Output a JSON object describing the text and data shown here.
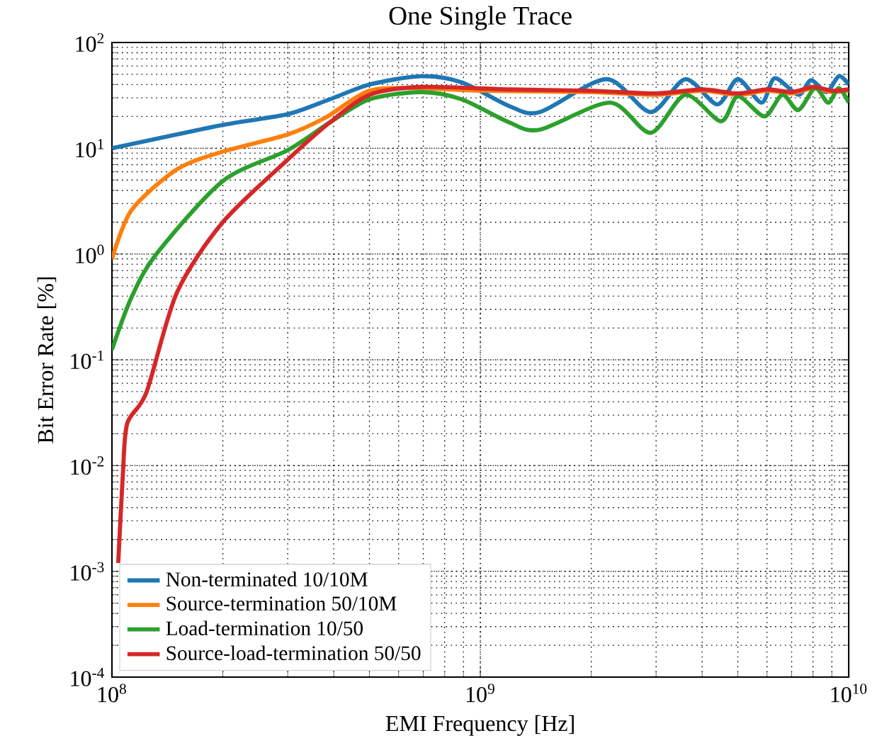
{
  "chart_data": {
    "type": "line",
    "title": "One Single Trace",
    "xlabel": "EMI Frequency [Hz]",
    "ylabel": "Bit Error Rate [%]",
    "log": "xy",
    "grid": true,
    "legend": "bottom left",
    "line_style": "solid",
    "marker": "none",
    "xlim": [
      100000000,
      10000000000
    ],
    "ylim": [
      0.0001,
      100
    ],
    "xticks": [
      {
        "value": 100000000,
        "label": "10$^{8}$"
      },
      {
        "value": 1000000000,
        "label": "10$^{9}$"
      },
      {
        "value": 10000000000,
        "label": "10$^{10}$"
      }
    ],
    "yticks": [
      {
        "value": 0.0001,
        "label": "10$^{-4}$"
      },
      {
        "value": 0.001,
        "label": "10$^{-3}$"
      },
      {
        "value": 0.01,
        "label": "10$^{-2}$"
      },
      {
        "value": 0.1,
        "label": "10$^{-1}$"
      },
      {
        "value": 1,
        "label": "10$^{0}$"
      },
      {
        "value": 10,
        "label": "10$^{1}$"
      },
      {
        "value": 100,
        "label": "10$^{2}$"
      }
    ],
    "series": [
      {
        "name": "Non-terminated 10/10M",
        "color": "#1f77b4",
        "x": [
          100000000,
          200000000,
          300000000,
          390000000,
          500000000,
          690000000,
          890000000,
          1200000000,
          1450000000,
          2200000000,
          2900000000,
          3600000000,
          4400000000,
          5000000000,
          5800000000,
          6300000000,
          7300000000,
          7900000000,
          8700000000,
          9400000000,
          10000000000
        ],
        "values": [
          10,
          16.6,
          21,
          29,
          40,
          48,
          42,
          25,
          22,
          45,
          22,
          45,
          26,
          45,
          27,
          46,
          32,
          44,
          34,
          48,
          40
        ]
      },
      {
        "name": "Source-termination 50/10M",
        "color": "#ff7f0e",
        "x": [
          100000000,
          113000000,
          150000000,
          200000000,
          300000000,
          380000000,
          500000000,
          690000000,
          1000000000,
          2000000000,
          3000000000,
          4000000000,
          5000000000,
          6000000000,
          7000000000,
          8000000000,
          9000000000,
          10000000000
        ],
        "values": [
          0.9,
          2.6,
          6.3,
          9.3,
          13.5,
          19.5,
          35,
          37,
          35,
          34,
          32,
          35,
          32,
          35,
          33,
          37,
          34,
          35
        ]
      },
      {
        "name": "Load-termination 10/50",
        "color": "#2ca02c",
        "x": [
          100000000,
          113000000,
          132000000,
          200000000,
          300000000,
          390000000,
          500000000,
          690000000,
          890000000,
          1200000000,
          1450000000,
          2250000000,
          2900000000,
          3600000000,
          4500000000,
          5000000000,
          5900000000,
          6600000000,
          7300000000,
          8100000000,
          8800000000,
          9400000000,
          10000000000
        ],
        "values": [
          0.125,
          0.39,
          1.0,
          4.9,
          9.6,
          17.5,
          29,
          34,
          29,
          17.5,
          15,
          27,
          14,
          32,
          18,
          31,
          20,
          32,
          23,
          37,
          27,
          37,
          27
        ]
      },
      {
        "name": "Source-load-termination 50/50",
        "color": "#d62728",
        "x": [
          104000000,
          107000000,
          110000000,
          124000000,
          150000000,
          200000000,
          300000000,
          390000000,
          500000000,
          690000000,
          1200000000,
          2000000000,
          3000000000,
          4000000000,
          5000000000,
          6000000000,
          7000000000,
          8000000000,
          9000000000,
          10000000000
        ],
        "values": [
          0.0012,
          0.008,
          0.025,
          0.049,
          0.43,
          2.0,
          7.8,
          17.5,
          32,
          38,
          36,
          35,
          33,
          36,
          33,
          36,
          34,
          38,
          35,
          36
        ]
      }
    ]
  }
}
